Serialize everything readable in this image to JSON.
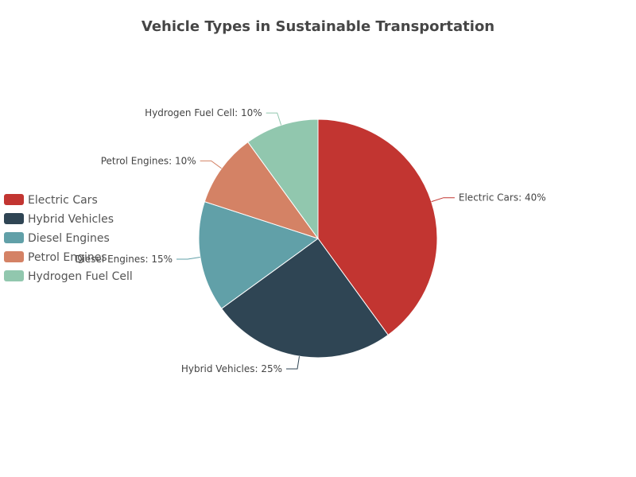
{
  "chart_data": {
    "type": "pie",
    "title": "Vehicle Types in Sustainable Transportation",
    "slices": [
      {
        "name": "Electric Cars",
        "value": 40,
        "label": "Electric Cars: 40%",
        "color": "#c23531"
      },
      {
        "name": "Hybrid Vehicles",
        "value": 25,
        "label": "Hybrid Vehicles: 25%",
        "color": "#2f4554"
      },
      {
        "name": "Diesel Engines",
        "value": 15,
        "label": "Diesel Engines: 15%",
        "color": "#61a0a8"
      },
      {
        "name": "Petrol Engines",
        "value": 10,
        "label": "Petrol Engines: 10%",
        "color": "#d48265"
      },
      {
        "name": "Hydrogen Fuel Cell",
        "value": 10,
        "label": "Hydrogen Fuel Cell: 10%",
        "color": "#91c7ae"
      }
    ],
    "legend_position": "left"
  }
}
